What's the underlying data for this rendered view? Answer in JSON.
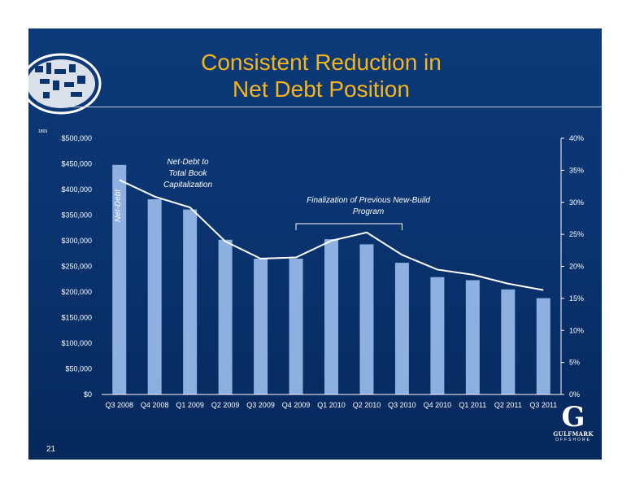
{
  "slide": {
    "title_line1": "Consistent Reduction in",
    "title_line2": "Net Debt Position",
    "page_number": "21",
    "logo_text": "GULFMARK",
    "logo_subtext": "OFFSHORE",
    "seal_caption": "1869"
  },
  "colors": {
    "background": "#0a3470",
    "bar": "#8db0e0",
    "line": "#ffffff",
    "title": "#f5b51b"
  },
  "chart_data": {
    "type": "bar",
    "categories": [
      "Q3 2008",
      "Q4 2008",
      "Q1 2009",
      "Q2 2009",
      "Q3 2009",
      "Q4 2009",
      "Q1 2010",
      "Q2 2010",
      "Q3 2010",
      "Q4 2010",
      "Q1 2011",
      "Q2 2011",
      "Q3 2011"
    ],
    "series": [
      {
        "name": "Net-Debt",
        "type": "bar",
        "axis": "left",
        "values": [
          448000,
          381000,
          361000,
          302000,
          265000,
          265000,
          303000,
          293000,
          257000,
          229000,
          223000,
          205000,
          188000
        ]
      },
      {
        "name": "Net-Debt to Total Book Capitalization",
        "type": "line",
        "axis": "right",
        "values": [
          33.5,
          30.9,
          29.2,
          23.9,
          21.2,
          21.4,
          24.0,
          25.3,
          21.8,
          19.5,
          18.7,
          17.3,
          16.3
        ]
      }
    ],
    "y_left": {
      "ylim": [
        0,
        500000
      ],
      "ticks": [
        "$0",
        "$50,000",
        "$100,000",
        "$150,000",
        "$200,000",
        "$250,000",
        "$300,000",
        "$350,000",
        "$400,000",
        "$450,000",
        "$500,000"
      ]
    },
    "y_right": {
      "ylim": [
        0,
        40
      ],
      "ticks": [
        "0%",
        "5%",
        "10%",
        "15%",
        "20%",
        "25%",
        "30%",
        "35%",
        "40%"
      ]
    },
    "annotations": {
      "ratio_label": [
        "Net-Debt to",
        "Total Book",
        "Capitalization"
      ],
      "bar_label": "Net-Debt",
      "bracket_label": [
        "Finalization of Previous New-Build",
        "Program"
      ],
      "bracket_from": "Q4 2009",
      "bracket_to": "Q3 2010"
    },
    "legend": "none",
    "grid": false
  }
}
